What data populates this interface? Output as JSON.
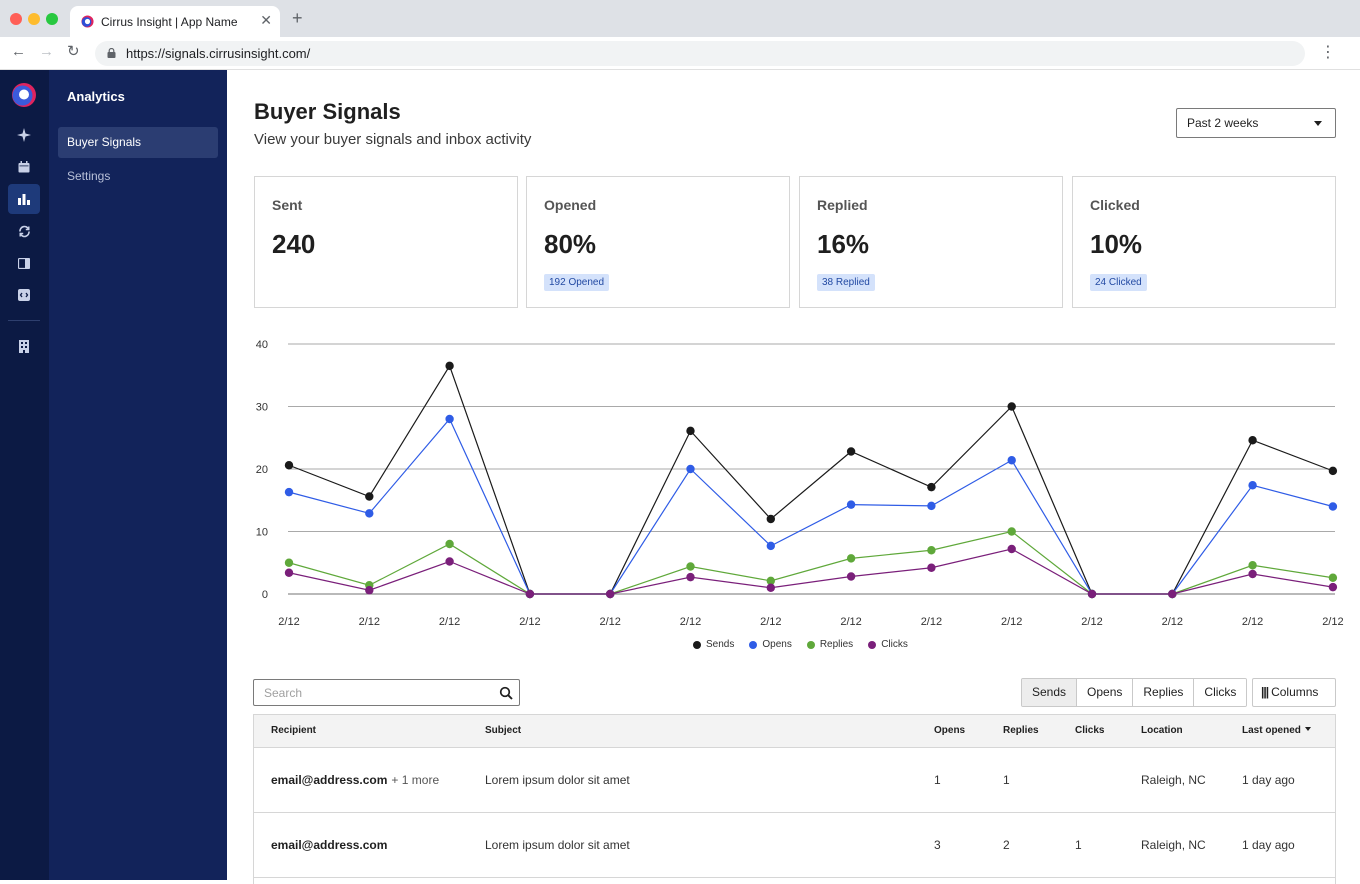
{
  "browser": {
    "tab_title": "Cirrus Insight | App Name",
    "url": "https://signals.cirrusinsight.com/"
  },
  "sidebar": {
    "section_title": "Analytics",
    "items": [
      {
        "label": "Buyer Signals",
        "active": true
      },
      {
        "label": "Settings",
        "active": false
      }
    ]
  },
  "rail": {
    "icons": [
      "sparkle-icon",
      "calendar-icon",
      "bar-chart-icon",
      "sync-icon",
      "panel-icon",
      "plugin-icon",
      "building-icon"
    ],
    "active": "bar-chart-icon"
  },
  "header": {
    "title": "Buyer Signals",
    "subtitle": "View your buyer signals and inbox activity",
    "range_value": "Past 2 weeks"
  },
  "cards": [
    {
      "label": "Sent",
      "value": "240",
      "badge": ""
    },
    {
      "label": "Opened",
      "value": "80%",
      "badge": "192 Opened"
    },
    {
      "label": "Replied",
      "value": "16%",
      "badge": "38 Replied"
    },
    {
      "label": "Clicked",
      "value": "10%",
      "badge": "24 Clicked"
    }
  ],
  "chart_data": {
    "type": "line",
    "title": "",
    "xlabel": "",
    "ylabel": "",
    "ylim": [
      0,
      40
    ],
    "yticks": [
      0,
      10,
      20,
      30,
      40
    ],
    "grid": true,
    "legend": "bottom",
    "categories": [
      "2/12",
      "2/12",
      "2/12",
      "2/12",
      "2/12",
      "2/12",
      "2/12",
      "2/12",
      "2/12",
      "2/12",
      "2/12",
      "2/12",
      "2/12",
      "2/12"
    ],
    "series": [
      {
        "name": "Sends",
        "color": "#1a1a1a",
        "values": [
          20.6,
          15.6,
          36.5,
          0,
          0,
          26.1,
          12,
          22.8,
          17.1,
          30,
          0,
          0,
          24.6,
          19.7
        ]
      },
      {
        "name": "Opens",
        "color": "#2f5ce6",
        "values": [
          16.3,
          12.9,
          28,
          0,
          0,
          20,
          7.7,
          14.3,
          14.1,
          21.4,
          0,
          0,
          17.4,
          14
        ]
      },
      {
        "name": "Replies",
        "color": "#5fa83a",
        "values": [
          5,
          1.4,
          8,
          0,
          0,
          4.4,
          2.1,
          5.7,
          7,
          10,
          0,
          0,
          4.6,
          2.6
        ]
      },
      {
        "name": "Clicks",
        "color": "#7a1f7a",
        "values": [
          3.4,
          0.6,
          5.2,
          0,
          0,
          2.7,
          1,
          2.8,
          4.2,
          7.2,
          0,
          0,
          3.2,
          1.1
        ]
      }
    ]
  },
  "toolbar": {
    "search_placeholder": "Search",
    "filters": [
      {
        "label": "Sends",
        "active": true
      },
      {
        "label": "Opens",
        "active": false
      },
      {
        "label": "Replies",
        "active": false
      },
      {
        "label": "Clicks",
        "active": false
      }
    ],
    "columns_label": "Columns"
  },
  "table": {
    "headers": {
      "recipient": "Recipient",
      "subject": "Subject",
      "opens": "Opens",
      "replies": "Replies",
      "clicks": "Clicks",
      "location": "Location",
      "last_opened": "Last opened"
    },
    "rows": [
      {
        "recipient": "email@address.com",
        "more": "+ 1 more",
        "subject": "Lorem ipsum dolor sit amet",
        "opens": "1",
        "replies": "1",
        "clicks": "",
        "location": "Raleigh, NC",
        "last_opened": "1 day ago"
      },
      {
        "recipient": "email@address.com",
        "more": "",
        "subject": "Lorem ipsum dolor sit amet",
        "opens": "3",
        "replies": "2",
        "clicks": "1",
        "location": "Raleigh, NC",
        "last_opened": "1 day ago"
      }
    ]
  }
}
